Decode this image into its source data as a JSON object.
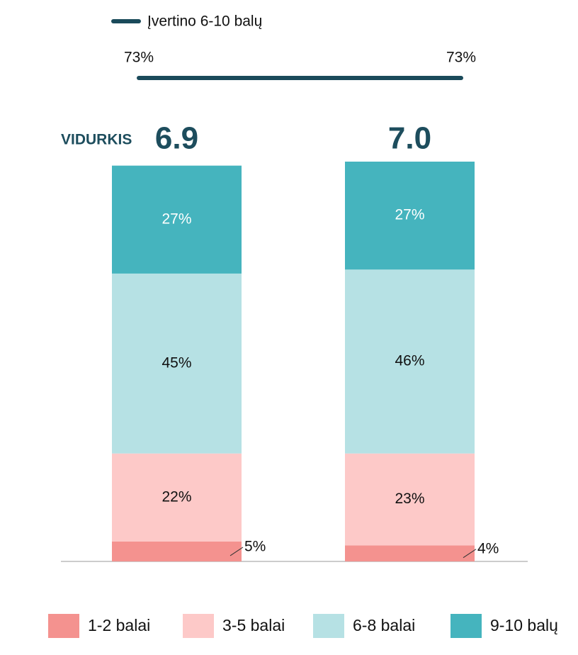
{
  "chart_data": {
    "type": "stacked_bar",
    "categories": [
      null,
      null
    ],
    "ylim": [
      0,
      100
    ],
    "series": [
      {
        "name": "1-2 balai",
        "color": "#f4928f",
        "values": [
          5,
          4
        ],
        "value_labels": [
          "5%",
          "4%"
        ]
      },
      {
        "name": "3-5 balai",
        "color": "#fdc9c8",
        "values": [
          22,
          23
        ],
        "value_labels": [
          "22%",
          "23%"
        ]
      },
      {
        "name": "6-8 balai",
        "color": "#b6e1e4",
        "values": [
          45,
          46
        ],
        "value_labels": [
          "45%",
          "46%"
        ]
      },
      {
        "name": "9-10 balų",
        "color": "#45b4be",
        "values": [
          27,
          27
        ],
        "value_labels": [
          "27%",
          "27%"
        ]
      }
    ],
    "line": {
      "name": "Įvertino 6-10 balų",
      "color": "#1a4a5a",
      "values": [
        73,
        73
      ],
      "value_labels": [
        "73%",
        "73%"
      ]
    },
    "average": {
      "label": "VIDURKIS",
      "values": [
        6.9,
        7
      ],
      "value_labels": [
        "6.9",
        "7.0"
      ]
    }
  }
}
